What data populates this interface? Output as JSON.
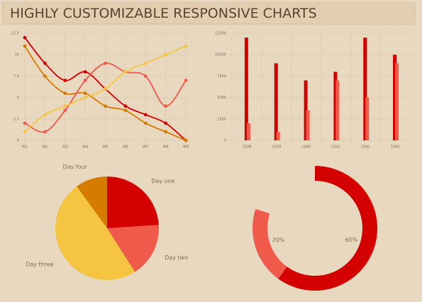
{
  "header": {
    "title": "HIGHLY CUSTOMIZABLE RESPONSIVE CHARTS"
  },
  "chart_data": [
    {
      "type": "line",
      "categories": [
        "W1",
        "W2",
        "W3",
        "W4",
        "W5",
        "W6",
        "W7",
        "W8",
        "W9"
      ],
      "ylim": [
        0,
        12.5
      ],
      "yticks": [
        0,
        2.5,
        5,
        7.5,
        10,
        12.5
      ],
      "grid": true,
      "series": [
        {
          "color": "#d40000",
          "values": [
            12,
            9,
            7,
            8,
            6,
            4,
            3,
            2,
            0
          ]
        },
        {
          "color": "#d47b00",
          "values": [
            11,
            7.5,
            5.5,
            5.5,
            4,
            3.5,
            2,
            1,
            0
          ]
        },
        {
          "color": "#f05a4a",
          "values": [
            2,
            1,
            3.5,
            7,
            9,
            8,
            7.5,
            4,
            7
          ]
        },
        {
          "color": "#f5c542",
          "values": [
            1,
            3,
            4,
            5,
            6,
            8,
            9,
            10,
            11
          ]
        }
      ]
    },
    {
      "type": "bar",
      "categories": [
        "1938",
        "1939",
        "1940",
        "1941",
        "1942",
        "1943"
      ],
      "ylim": [
        0,
        12500
      ],
      "yticks": [
        0,
        2500,
        5000,
        7500,
        10000,
        12500
      ],
      "grid": true,
      "series": [
        {
          "color": "#d40000",
          "values": [
            12000,
            9000,
            7000,
            8000,
            12000,
            10000
          ]
        },
        {
          "color": "#f05a4a",
          "values": [
            2000,
            1000,
            3500,
            7000,
            5000,
            9000
          ]
        }
      ]
    },
    {
      "type": "pie",
      "categories": [
        "Day one",
        "Day two",
        "Day three",
        "Day four"
      ],
      "values": [
        24,
        17,
        49,
        10
      ],
      "colors": [
        "#d40000",
        "#f05a4a",
        "#f5c542",
        "#d47b00"
      ]
    },
    {
      "type": "doughnut",
      "values": [
        60,
        20
      ],
      "value_labels": [
        "60%",
        "20%"
      ],
      "colors": [
        "#d40000",
        "#f05a4a"
      ]
    }
  ]
}
